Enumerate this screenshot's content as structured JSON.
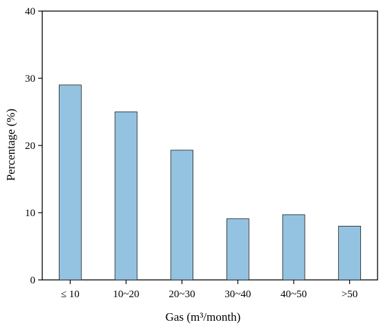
{
  "chart_data": {
    "type": "bar",
    "categories": [
      "≤ 10",
      "10~20",
      "20~30",
      "30~40",
      "40~50",
      ">50"
    ],
    "values": [
      29.0,
      25.0,
      19.3,
      9.1,
      9.7,
      8.0
    ],
    "xlabel": "Gas (m³/month)",
    "ylabel": "Percentage (%)",
    "ylim": [
      0,
      40
    ],
    "yticks": [
      0,
      10,
      20,
      30,
      40
    ],
    "grid": false,
    "legend": "none",
    "colors": {
      "bar_fill": "#94c3e2",
      "bar_stroke": "#1a1a1a",
      "axis": "#000000"
    }
  }
}
